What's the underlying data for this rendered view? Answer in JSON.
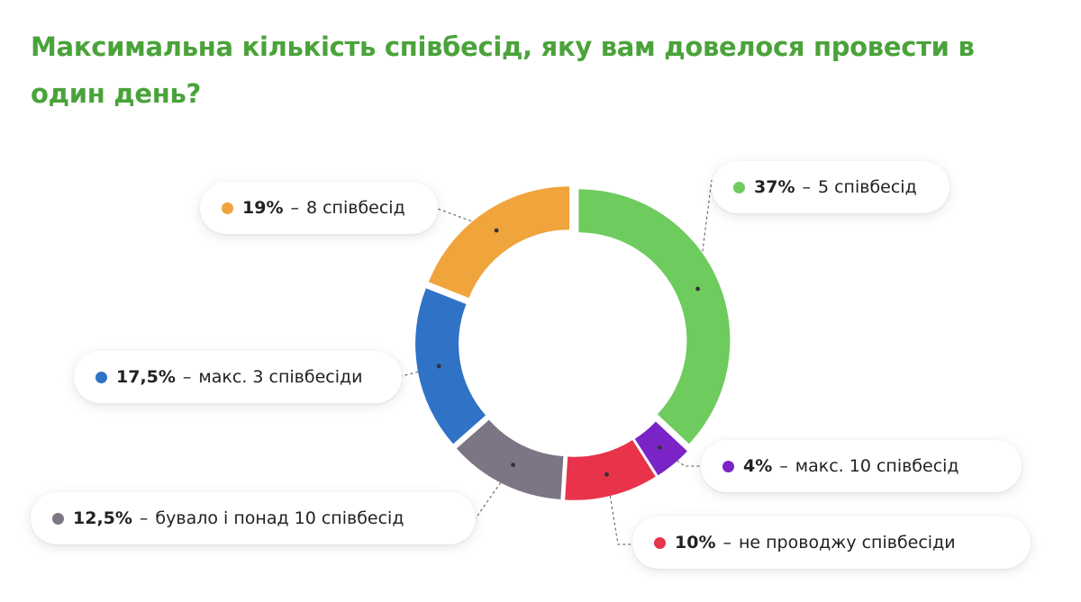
{
  "title": "Максимальна кількість співбесід, яку вам довелося провести в один день?",
  "chart_data": {
    "type": "pie",
    "variant": "donut",
    "slices": [
      {
        "label": "5 співбесід",
        "percent_label": "37%",
        "value": 37,
        "color": "#6ecb5e"
      },
      {
        "label": "макс. 10 співбесід",
        "percent_label": "4%",
        "value": 4,
        "color": "#7a24c8"
      },
      {
        "label": "не проводжу співбесіди",
        "percent_label": "10%",
        "value": 10,
        "color": "#e8334a"
      },
      {
        "label": "бувало і понад 10 співбесід",
        "percent_label": "12,5%",
        "value": 12.5,
        "color": "#7d7583"
      },
      {
        "label": "макс. 3 співбесіди",
        "percent_label": "17,5%",
        "value": 17.5,
        "color": "#2f72c6"
      },
      {
        "label": "8 співбесід",
        "percent_label": "19%",
        "value": 19,
        "color": "#f0a43c"
      }
    ]
  },
  "legend_separator": "–"
}
